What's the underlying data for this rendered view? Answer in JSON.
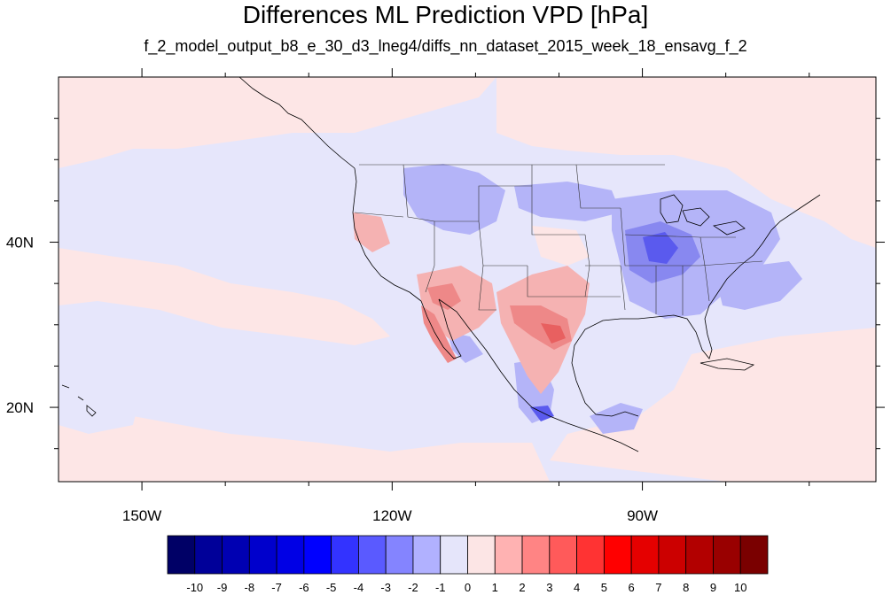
{
  "title": "Differences ML Prediction VPD [hPa]",
  "subtitle": "f_2_model_output_b8_e_30_d3_lneg4/diffs_nn_dataset_2015_week_18_ensavg_f_2",
  "map": {
    "region": "North America / Eastern Pacific",
    "projection": "cylindrical equidistant",
    "lon_range": [
      -160,
      -62
    ],
    "lat_range": [
      11,
      60
    ],
    "lon_tick_labels": [
      "150W",
      "120W",
      "90W"
    ],
    "lon_tick_values": [
      -150,
      -120,
      -90
    ],
    "lat_tick_labels": [
      "40N",
      "20N"
    ],
    "lat_tick_values": [
      40,
      20
    ],
    "background_level": "-1 to 0 (light blue) over Pacific and land, 0 to 1 (light pink) over parts of ocean",
    "features": [
      {
        "area": "Southwest US / Texas / northern Mexico",
        "sign": "positive",
        "approx_max": 4
      },
      {
        "area": "Ohio Valley / Midwest",
        "sign": "negative",
        "approx_min": -3
      },
      {
        "area": "Southern Mexico",
        "sign": "negative",
        "approx_min": -4
      }
    ]
  },
  "colorbar": {
    "labels": [
      "-10",
      "-9",
      "-8",
      "-7",
      "-6",
      "-5",
      "-4",
      "-3",
      "-2",
      "-1",
      "0",
      "1",
      "2",
      "3",
      "4",
      "5",
      "6",
      "7",
      "8",
      "9",
      "10"
    ],
    "colors": [
      "#000066",
      "#000099",
      "#0000b2",
      "#0000cc",
      "#0000e5",
      "#0000ff",
      "#3333ff",
      "#5a5aff",
      "#8484ff",
      "#b1b1ff",
      "#e5e5fa",
      "#fce5e5",
      "#ffb2b2",
      "#ff8484",
      "#ff5a5a",
      "#ff3333",
      "#ff0000",
      "#e50000",
      "#cc0000",
      "#b20000",
      "#990000",
      "#7a0000"
    ]
  },
  "colors": {
    "neg_light": "#e6e6fb",
    "pos_light": "#fde6e6",
    "neg_mid": "#b4b4f8",
    "neg_strong": "#8888f0",
    "neg_deep": "#5a5aee",
    "pos_mid": "#f5b2b2",
    "pos_strong": "#ee8888",
    "pos_deep": "#e86060"
  }
}
